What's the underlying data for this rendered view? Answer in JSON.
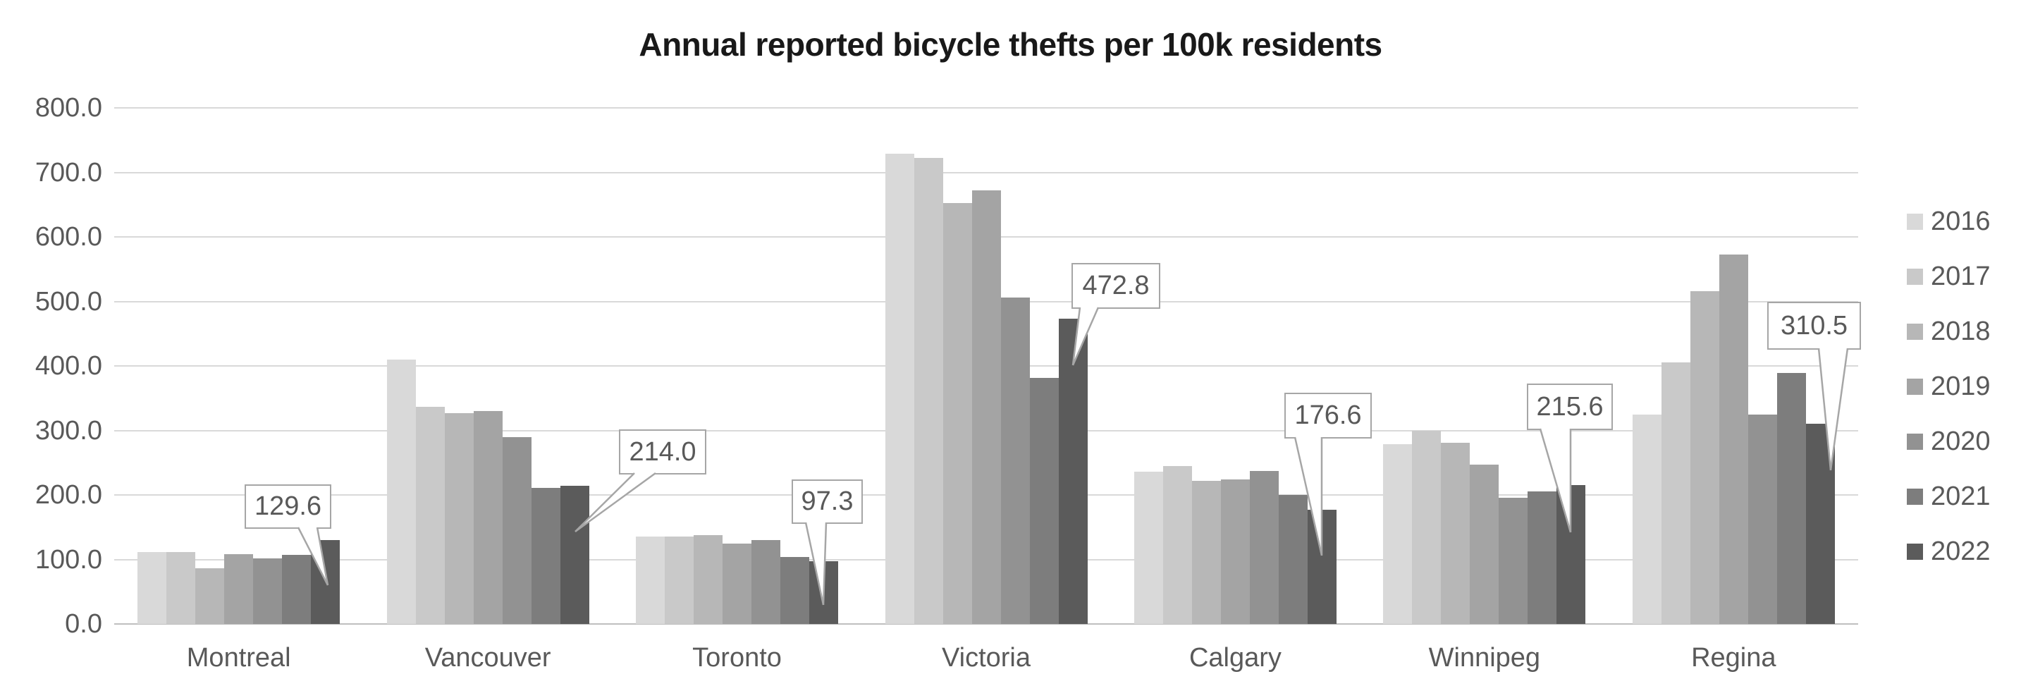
{
  "title": "Annual reported bicycle thefts per 100k residents",
  "chart_data": {
    "type": "bar",
    "title": "Annual reported bicycle thefts per 100k residents",
    "categories": [
      "Montreal",
      "Vancouver",
      "Toronto",
      "Victoria",
      "Calgary",
      "Winnipeg",
      "Regina"
    ],
    "series": [
      {
        "name": "2016",
        "color": "#d9d9d9",
        "values": [
          111,
          410,
          136,
          729,
          236,
          279,
          325
        ]
      },
      {
        "name": "2017",
        "color": "#c9c9c9",
        "values": [
          112,
          337,
          136,
          722,
          245,
          300,
          406
        ]
      },
      {
        "name": "2018",
        "color": "#b7b7b7",
        "values": [
          86,
          327,
          138,
          653,
          222,
          281,
          516
        ]
      },
      {
        "name": "2019",
        "color": "#a4a4a4",
        "values": [
          108,
          330,
          125,
          672,
          224,
          247,
          573
        ]
      },
      {
        "name": "2020",
        "color": "#929292",
        "values": [
          102,
          290,
          130,
          506,
          237,
          196,
          325
        ]
      },
      {
        "name": "2021",
        "color": "#7d7d7d",
        "values": [
          107,
          211,
          104,
          381,
          200,
          205,
          389
        ]
      },
      {
        "name": "2022",
        "color": "#5b5b5b",
        "values": [
          129.6,
          214.0,
          97.3,
          472.8,
          176.6,
          215.6,
          310.5
        ]
      }
    ],
    "xlabel": "",
    "ylabel": "",
    "ylim": [
      0,
      800
    ],
    "ytick_step": 100,
    "y_tick_labels": [
      "0.0",
      "100.0",
      "200.0",
      "300.0",
      "400.0",
      "500.0",
      "600.0",
      "700.0",
      "800.0"
    ],
    "grid": true,
    "legend_position": "right",
    "legend_entries": [
      "2016",
      "2017",
      "2018",
      "2019",
      "2020",
      "2021",
      "2022"
    ],
    "data_callouts": [
      {
        "category": "Montreal",
        "series": "2022",
        "label": "129.6"
      },
      {
        "category": "Vancouver",
        "series": "2022",
        "label": "214.0"
      },
      {
        "category": "Toronto",
        "series": "2022",
        "label": "97.3"
      },
      {
        "category": "Victoria",
        "series": "2022",
        "label": "472.8"
      },
      {
        "category": "Calgary",
        "series": "2022",
        "label": "176.6"
      },
      {
        "category": "Winnipeg",
        "series": "2022",
        "label": "215.6"
      },
      {
        "category": "Regina",
        "series": "2022",
        "label": "310.5"
      }
    ],
    "colors": {
      "text": "#595959",
      "title_text": "#191919",
      "gridline": "#d9d9d9",
      "axis_line": "#bfbfbf",
      "callout_border": "#a6a6a6",
      "background": "#ffffff"
    }
  }
}
